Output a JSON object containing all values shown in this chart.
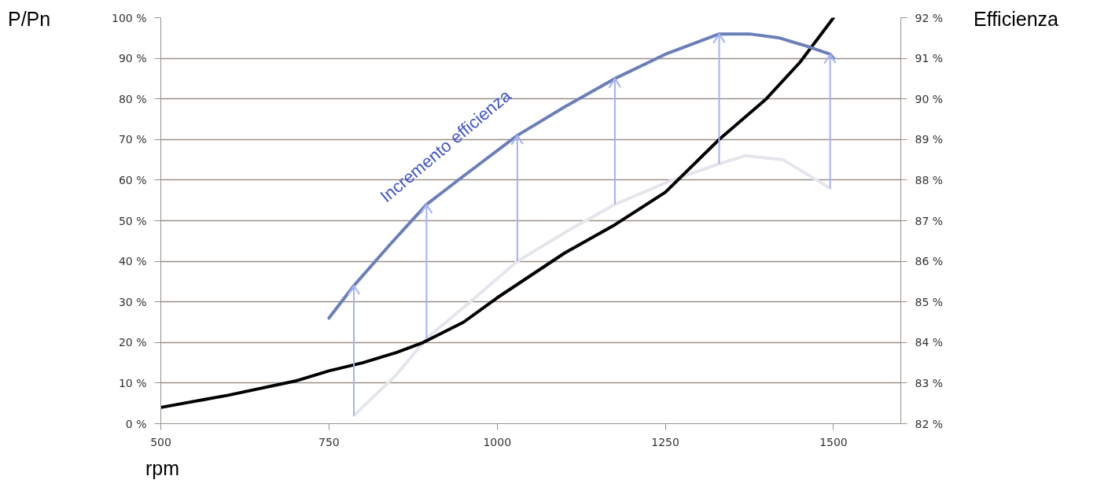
{
  "chart_data": {
    "type": "line",
    "xlabel": "rpm",
    "ylabel": "P/Pn",
    "y2label": "Efficienza",
    "xlim": [
      500,
      1600
    ],
    "xticks": [
      500,
      750,
      1000,
      1250,
      1500
    ],
    "ylim": [
      0,
      100
    ],
    "yticks": [
      {
        "value": 0,
        "label": "0 %"
      },
      {
        "value": 10,
        "label": "10 %"
      },
      {
        "value": 20,
        "label": "20 %"
      },
      {
        "value": 30,
        "label": "30 %"
      },
      {
        "value": 40,
        "label": "40 %"
      },
      {
        "value": 50,
        "label": "50 %"
      },
      {
        "value": 60,
        "label": "60 %"
      },
      {
        "value": 70,
        "label": "70 %"
      },
      {
        "value": 80,
        "label": "80 %"
      },
      {
        "value": 90,
        "label": "90 %"
      },
      {
        "value": 100,
        "label": "100 %"
      }
    ],
    "y2lim": [
      82,
      92
    ],
    "y2ticks": [
      {
        "value": 82,
        "label": "82 %"
      },
      {
        "value": 83,
        "label": "83 %"
      },
      {
        "value": 84,
        "label": "84 %"
      },
      {
        "value": 85,
        "label": "85 %"
      },
      {
        "value": 86,
        "label": "86 %"
      },
      {
        "value": 87,
        "label": "87 %"
      },
      {
        "value": 88,
        "label": "88 %"
      },
      {
        "value": 89,
        "label": "89 %"
      },
      {
        "value": 90,
        "label": "90 %"
      },
      {
        "value": 91,
        "label": "91 %"
      },
      {
        "value": 92,
        "label": "92 %"
      }
    ],
    "grid": "y",
    "series": [
      {
        "color": "#000000",
        "x": [
          500,
          600,
          700,
          750,
          800,
          850,
          890,
          950,
          1000,
          1100,
          1175,
          1250,
          1330,
          1400,
          1450,
          1500
        ],
        "values": [
          4,
          7,
          10.5,
          13,
          15,
          17.5,
          20,
          25,
          31,
          42,
          49,
          57,
          70,
          80,
          89,
          100
        ]
      },
      {
        "color": "#e6e4ec",
        "axis": "y2",
        "x": [
          787,
          850,
          895,
          960,
          1030,
          1110,
          1175,
          1260,
          1330,
          1370,
          1425,
          1495
        ],
        "values": [
          82.2,
          83.2,
          84.1,
          85.0,
          86.0,
          86.8,
          87.4,
          88.0,
          88.4,
          88.6,
          88.5,
          87.8
        ],
        "errors": [
          [
            82.2,
            85.4
          ],
          null,
          [
            84.1,
            87.4
          ],
          null,
          [
            86.0,
            89.1
          ],
          null,
          [
            87.4,
            90.5
          ],
          null,
          [
            88.4,
            91.6
          ],
          null,
          null,
          [
            87.8,
            91.1
          ]
        ]
      },
      {
        "color": "#6a7fb8",
        "axis": "y2",
        "x": [
          750,
          787,
          840,
          895,
          950,
          1030,
          1100,
          1175,
          1250,
          1330,
          1375,
          1420,
          1460,
          1495,
          1500
        ],
        "values": [
          84.6,
          85.4,
          86.4,
          87.4,
          88.1,
          89.1,
          89.8,
          90.5,
          91.1,
          91.6,
          91.6,
          91.5,
          91.3,
          91.1,
          91.0
        ]
      }
    ],
    "annotations": [
      "Incremento efficienza"
    ]
  }
}
